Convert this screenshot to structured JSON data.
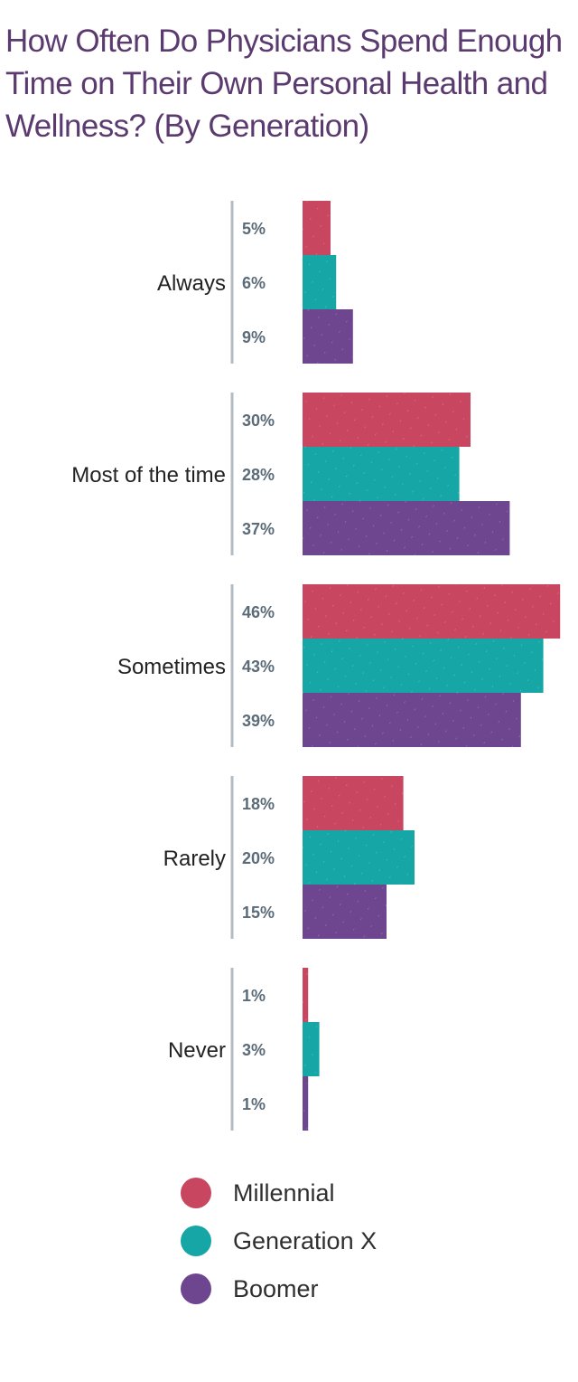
{
  "chart_data": {
    "type": "bar",
    "orientation": "horizontal",
    "title": "How Often Do Physicians Spend Enough Time on Their Own Personal Health and Wellness? (By Generation)",
    "categories": [
      "Always",
      "Most of the time",
      "Sometimes",
      "Rarely",
      "Never"
    ],
    "series": [
      {
        "name": "Millennial",
        "color": "#c8465f",
        "values": [
          5,
          30,
          46,
          18,
          1
        ],
        "labels": [
          "5%",
          "30%",
          "46%",
          "18%",
          "1%"
        ]
      },
      {
        "name": "Generation X",
        "color": "#16a6a6",
        "values": [
          6,
          28,
          43,
          20,
          3
        ],
        "labels": [
          "6%",
          "28%",
          "43%",
          "20%",
          "3%"
        ]
      },
      {
        "name": "Boomer",
        "color": "#6e4690",
        "values": [
          9,
          37,
          39,
          15,
          1
        ],
        "labels": [
          "9%",
          "37%",
          "39%",
          "15%",
          "1%"
        ]
      }
    ],
    "value_unit": "%",
    "grid": false,
    "legend_position": "bottom"
  }
}
